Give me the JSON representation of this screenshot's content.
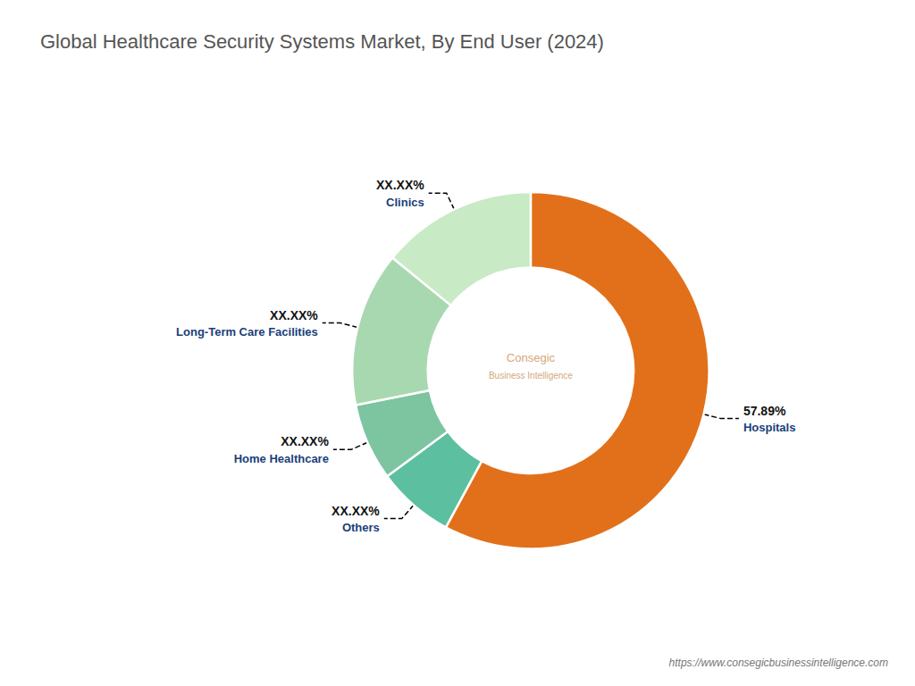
{
  "chart_data": {
    "type": "pie",
    "title": "Global Healthcare Security Systems Market, By End User (2024)",
    "categories": [
      "Hospitals",
      "Others",
      "Home Healthcare",
      "Long-Term Care Facilities",
      "Clinics"
    ],
    "values": [
      57.89,
      7.0,
      7.0,
      14.0,
      14.11
    ],
    "value_labels": [
      "57.89%",
      "XX.XX%",
      "XX.XX%",
      "XX.XX%",
      "XX.XX%"
    ],
    "colors": [
      "#E2701A",
      "#5BBFA0",
      "#7DC4A0",
      "#A8D8B0",
      "#C8EAC5"
    ],
    "data_labels": true,
    "annotations": [
      "https://www.consegicbusinessintelligence.com",
      "Consegic",
      "Business Intelligence"
    ]
  }
}
